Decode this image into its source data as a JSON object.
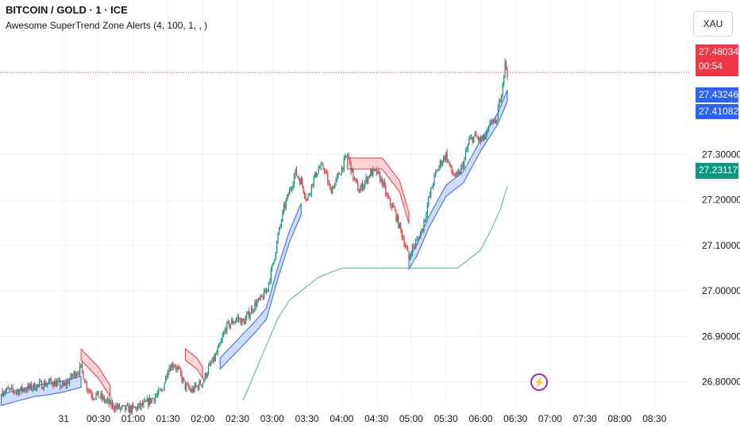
{
  "header": {
    "symbol_title": "BITCOIN / GOLD · 1 · ICE",
    "indicator_title": "Awesome SuperTrend Zone Alerts (4, 100, 1, , )"
  },
  "currency_label": "XAU",
  "price_tags": {
    "last_price": "27.48034",
    "countdown": "00:54",
    "upper_band": "27.43246",
    "lower_band": "27.41082",
    "trail_line": "27.23117"
  },
  "colors": {
    "up_candle": "#089981",
    "down_candle": "#f23645",
    "bull_zone": "#2962ff",
    "bear_zone": "#f23645",
    "trail_line": "#66c28f",
    "grid": "#f0f3fa",
    "text": "#131722"
  },
  "chart_data": {
    "type": "candlestick",
    "y_ticks": [
      "27.30000",
      "27.20000",
      "27.10000",
      "27.00000",
      "26.90000",
      "26.80000"
    ],
    "y_tick_values": [
      27.3,
      27.2,
      27.1,
      27.0,
      26.9,
      26.8
    ],
    "ylim": [
      26.745,
      27.535
    ],
    "x_ticks": [
      "31",
      "00:30",
      "01:00",
      "01:30",
      "02:00",
      "02:30",
      "03:00",
      "03:30",
      "04:00",
      "04:30",
      "05:00",
      "05:30",
      "06:00",
      "06:30",
      "07:00",
      "07:30",
      "08:00",
      "08:30"
    ],
    "x_tick_minutes": [
      0,
      30,
      60,
      90,
      120,
      150,
      180,
      210,
      240,
      270,
      300,
      330,
      360,
      390,
      420,
      450,
      480,
      510
    ],
    "xlim_minutes": [
      -55,
      540
    ],
    "last_price": 27.48034,
    "series": [
      {
        "name": "price",
        "close_points": [
          [
            -54,
            26.78
          ],
          [
            -40,
            26.78
          ],
          [
            -25,
            26.79
          ],
          [
            -10,
            26.8
          ],
          [
            0,
            26.79
          ],
          [
            10,
            26.82
          ],
          [
            15,
            26.83
          ],
          [
            20,
            26.79
          ],
          [
            25,
            26.77
          ],
          [
            30,
            26.77
          ],
          [
            40,
            26.75
          ],
          [
            50,
            26.74
          ],
          [
            60,
            26.74
          ],
          [
            70,
            26.75
          ],
          [
            80,
            26.77
          ],
          [
            85,
            26.78
          ],
          [
            90,
            26.83
          ],
          [
            95,
            26.84
          ],
          [
            100,
            26.82
          ],
          [
            105,
            26.79
          ],
          [
            110,
            26.78
          ],
          [
            120,
            26.8
          ],
          [
            125,
            26.83
          ],
          [
            130,
            26.85
          ],
          [
            135,
            26.88
          ],
          [
            140,
            26.92
          ],
          [
            145,
            26.93
          ],
          [
            150,
            26.94
          ],
          [
            155,
            26.93
          ],
          [
            160,
            26.95
          ],
          [
            165,
            26.97
          ],
          [
            170,
            26.98
          ],
          [
            175,
            27.0
          ],
          [
            180,
            27.05
          ],
          [
            185,
            27.12
          ],
          [
            190,
            27.18
          ],
          [
            195,
            27.22
          ],
          [
            200,
            27.26
          ],
          [
            205,
            27.24
          ],
          [
            210,
            27.2
          ],
          [
            215,
            27.24
          ],
          [
            220,
            27.27
          ],
          [
            225,
            27.27
          ],
          [
            230,
            27.22
          ],
          [
            235,
            27.24
          ],
          [
            240,
            27.27
          ],
          [
            245,
            27.3
          ],
          [
            250,
            27.25
          ],
          [
            255,
            27.22
          ],
          [
            260,
            27.24
          ],
          [
            265,
            27.26
          ],
          [
            270,
            27.26
          ],
          [
            275,
            27.24
          ],
          [
            280,
            27.2
          ],
          [
            285,
            27.18
          ],
          [
            290,
            27.14
          ],
          [
            295,
            27.1
          ],
          [
            298,
            27.07
          ],
          [
            300,
            27.09
          ],
          [
            305,
            27.11
          ],
          [
            310,
            27.14
          ],
          [
            315,
            27.2
          ],
          [
            320,
            27.25
          ],
          [
            325,
            27.28
          ],
          [
            330,
            27.3
          ],
          [
            335,
            27.26
          ],
          [
            340,
            27.25
          ],
          [
            345,
            27.28
          ],
          [
            350,
            27.33
          ],
          [
            355,
            27.34
          ],
          [
            360,
            27.33
          ],
          [
            365,
            27.34
          ],
          [
            370,
            27.38
          ],
          [
            373,
            27.36
          ],
          [
            375,
            27.4
          ],
          [
            378,
            27.44
          ],
          [
            381,
            27.5
          ],
          [
            383,
            27.48
          ]
        ]
      },
      {
        "name": "bull zone",
        "bands": [
          [
            [
              -54,
              26.76
            ],
            [
              -40,
              26.77
            ],
            [
              -25,
              26.78
            ],
            [
              -10,
              26.785
            ],
            [
              0,
              26.79
            ],
            [
              15,
              26.8
            ]
          ],
          [
            [
              135,
              26.84
            ],
            [
              150,
              26.88
            ],
            [
              165,
              26.92
            ],
            [
              175,
              26.95
            ],
            [
              185,
              27.04
            ],
            [
              195,
              27.12
            ],
            [
              205,
              27.18
            ]
          ],
          [
            [
              298,
              27.06
            ],
            [
              305,
              27.09
            ],
            [
              315,
              27.15
            ],
            [
              330,
              27.22
            ],
            [
              345,
              27.25
            ],
            [
              360,
              27.32
            ],
            [
              375,
              27.38
            ],
            [
              383,
              27.43
            ]
          ]
        ]
      },
      {
        "name": "bear zone",
        "bands": [
          [
            [
              15,
              26.86
            ],
            [
              30,
              26.82
            ],
            [
              40,
              26.78
            ]
          ],
          [
            [
              105,
              26.86
            ],
            [
              115,
              26.84
            ],
            [
              120,
              26.82
            ]
          ],
          [
            [
              245,
              27.28
            ],
            [
              260,
              27.28
            ],
            [
              275,
              27.28
            ],
            [
              290,
              27.23
            ],
            [
              298,
              27.16
            ]
          ]
        ]
      },
      {
        "name": "trail line",
        "points": [
          [
            155,
            26.76
          ],
          [
            165,
            26.82
          ],
          [
            175,
            26.88
          ],
          [
            185,
            26.94
          ],
          [
            195,
            26.98
          ],
          [
            205,
            27.0
          ],
          [
            220,
            27.03
          ],
          [
            240,
            27.05
          ],
          [
            260,
            27.05
          ],
          [
            280,
            27.05
          ],
          [
            300,
            27.05
          ],
          [
            320,
            27.05
          ],
          [
            340,
            27.05
          ],
          [
            350,
            27.07
          ],
          [
            360,
            27.09
          ],
          [
            370,
            27.14
          ],
          [
            377,
            27.18
          ],
          [
            383,
            27.23
          ]
        ]
      }
    ]
  }
}
